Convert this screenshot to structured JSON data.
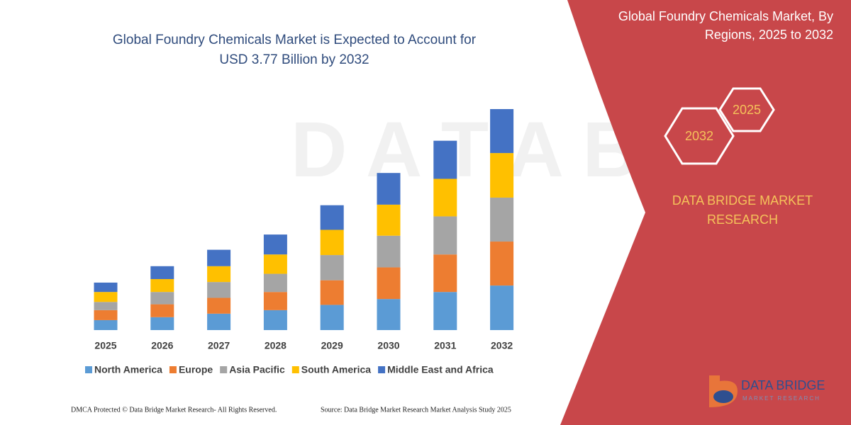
{
  "chart_data": {
    "type": "stacked_bar",
    "title": [
      "Global Foundry Chemicals Market is Expected to Account for",
      "USD 3.77 Billion by 2032"
    ],
    "categories": [
      "2025",
      "2026",
      "2027",
      "2028",
      "2029",
      "2030",
      "2031",
      "2032"
    ],
    "series": [
      {
        "name": "North America",
        "color": "#5b9bd5",
        "values": [
          0.17,
          0.22,
          0.28,
          0.34,
          0.43,
          0.53,
          0.65,
          0.76
        ]
      },
      {
        "name": "Europe",
        "color": "#ed7d31",
        "values": [
          0.17,
          0.22,
          0.27,
          0.31,
          0.42,
          0.54,
          0.64,
          0.75
        ]
      },
      {
        "name": "Asia Pacific",
        "color": "#a5a5a5",
        "values": [
          0.14,
          0.21,
          0.27,
          0.31,
          0.43,
          0.54,
          0.65,
          0.75
        ]
      },
      {
        "name": "South America",
        "color": "#ffc000",
        "values": [
          0.17,
          0.22,
          0.27,
          0.33,
          0.43,
          0.53,
          0.64,
          0.76
        ]
      },
      {
        "name": "Middle East and Africa",
        "color": "#4472c4",
        "values": [
          0.16,
          0.22,
          0.28,
          0.34,
          0.42,
          0.54,
          0.65,
          0.75
        ]
      }
    ]
  },
  "panel": {
    "title": [
      "Global Foundry Chemicals Market, By",
      "Regions, 2025 to 2032"
    ],
    "hexagons": [
      "2032",
      "2025"
    ],
    "brand": [
      "DATA BRIDGE MARKET",
      "RESEARCH"
    ]
  },
  "logo": {
    "name": "DATA BRIDGE",
    "tagline": "MARKET RESEARCH"
  },
  "footer": {
    "left": "DMCA Protected © Data Bridge Market Research-  All Rights Reserved.",
    "right": "Source: Data Bridge Market Research  Market Analysis Study 2025"
  }
}
